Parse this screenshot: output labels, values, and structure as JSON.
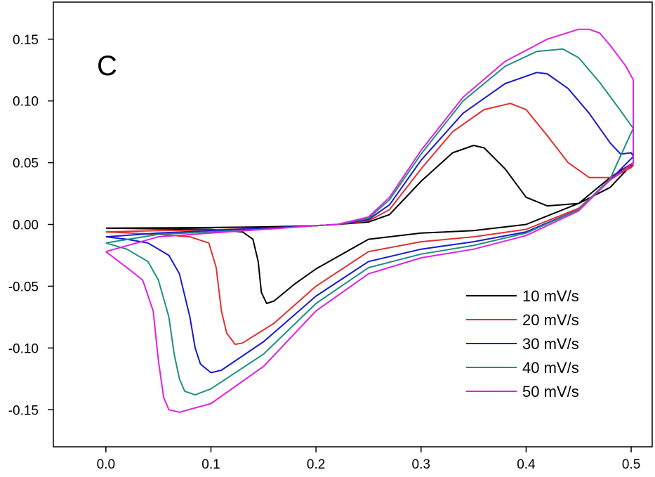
{
  "chart_data": {
    "type": "line",
    "panel_label": "C",
    "title": "",
    "xlabel": "",
    "ylabel": "",
    "xlim": [
      -0.05,
      0.52
    ],
    "ylim": [
      -0.18,
      0.18
    ],
    "x_ticks": [
      0.0,
      0.1,
      0.2,
      0.3,
      0.4,
      0.5
    ],
    "x_tick_labels": [
      "0.0",
      "0.1",
      "0.2",
      "0.3",
      "0.4",
      "0.5"
    ],
    "y_ticks": [
      -0.15,
      -0.1,
      -0.05,
      0.0,
      0.05,
      0.1,
      0.15
    ],
    "y_tick_labels": [
      "-0.15",
      "-0.10",
      "-0.05",
      "0.00",
      "0.05",
      "0.10",
      "0.15"
    ],
    "grid": false,
    "legend_position": "bottom-right",
    "series": [
      {
        "name": "10 mV/s",
        "color": "#000000",
        "points": [
          [
            0.0,
            -0.003
          ],
          [
            0.05,
            -0.0028
          ],
          [
            0.1,
            -0.0025
          ],
          [
            0.15,
            -0.002
          ],
          [
            0.2,
            -0.001
          ],
          [
            0.22,
            0.0
          ],
          [
            0.25,
            0.002
          ],
          [
            0.27,
            0.008
          ],
          [
            0.3,
            0.035
          ],
          [
            0.33,
            0.058
          ],
          [
            0.35,
            0.064
          ],
          [
            0.36,
            0.062
          ],
          [
            0.38,
            0.045
          ],
          [
            0.4,
            0.022
          ],
          [
            0.42,
            0.015
          ],
          [
            0.45,
            0.017
          ],
          [
            0.48,
            0.03
          ],
          [
            0.5,
            0.048
          ],
          [
            0.502,
            0.05
          ],
          [
            0.48,
            0.038
          ],
          [
            0.45,
            0.017
          ],
          [
            0.4,
            0.0
          ],
          [
            0.35,
            -0.005
          ],
          [
            0.3,
            -0.007
          ],
          [
            0.25,
            -0.012
          ],
          [
            0.2,
            -0.036
          ],
          [
            0.18,
            -0.048
          ],
          [
            0.16,
            -0.062
          ],
          [
            0.153,
            -0.064
          ],
          [
            0.148,
            -0.055
          ],
          [
            0.145,
            -0.03
          ],
          [
            0.14,
            -0.012
          ],
          [
            0.13,
            -0.006
          ],
          [
            0.1,
            -0.004
          ],
          [
            0.05,
            -0.0035
          ],
          [
            0.0,
            -0.003
          ]
        ]
      },
      {
        "name": "20 mV/s",
        "color": "#e03030",
        "points": [
          [
            0.0,
            -0.006
          ],
          [
            0.05,
            -0.005
          ],
          [
            0.1,
            -0.0045
          ],
          [
            0.15,
            -0.003
          ],
          [
            0.2,
            -0.001
          ],
          [
            0.22,
            0.0
          ],
          [
            0.25,
            0.003
          ],
          [
            0.27,
            0.012
          ],
          [
            0.3,
            0.045
          ],
          [
            0.33,
            0.075
          ],
          [
            0.36,
            0.093
          ],
          [
            0.385,
            0.098
          ],
          [
            0.4,
            0.093
          ],
          [
            0.42,
            0.072
          ],
          [
            0.44,
            0.05
          ],
          [
            0.46,
            0.038
          ],
          [
            0.48,
            0.038
          ],
          [
            0.5,
            0.046
          ],
          [
            0.502,
            0.048
          ],
          [
            0.48,
            0.036
          ],
          [
            0.45,
            0.013
          ],
          [
            0.4,
            -0.004
          ],
          [
            0.35,
            -0.01
          ],
          [
            0.3,
            -0.014
          ],
          [
            0.25,
            -0.022
          ],
          [
            0.2,
            -0.05
          ],
          [
            0.16,
            -0.08
          ],
          [
            0.13,
            -0.096
          ],
          [
            0.123,
            -0.097
          ],
          [
            0.115,
            -0.088
          ],
          [
            0.11,
            -0.07
          ],
          [
            0.105,
            -0.035
          ],
          [
            0.098,
            -0.015
          ],
          [
            0.08,
            -0.01
          ],
          [
            0.05,
            -0.008
          ],
          [
            0.0,
            -0.006
          ]
        ]
      },
      {
        "name": "30 mV/s",
        "color": "#1a1acc",
        "points": [
          [
            0.0,
            -0.01
          ],
          [
            0.05,
            -0.007
          ],
          [
            0.1,
            -0.005
          ],
          [
            0.15,
            -0.003
          ],
          [
            0.2,
            -0.001
          ],
          [
            0.22,
            0.0
          ],
          [
            0.25,
            0.004
          ],
          [
            0.27,
            0.016
          ],
          [
            0.3,
            0.052
          ],
          [
            0.34,
            0.09
          ],
          [
            0.38,
            0.114
          ],
          [
            0.41,
            0.123
          ],
          [
            0.42,
            0.122
          ],
          [
            0.44,
            0.11
          ],
          [
            0.46,
            0.09
          ],
          [
            0.48,
            0.066
          ],
          [
            0.49,
            0.057
          ],
          [
            0.5,
            0.058
          ],
          [
            0.502,
            0.055
          ],
          [
            0.48,
            0.036
          ],
          [
            0.45,
            0.012
          ],
          [
            0.4,
            -0.006
          ],
          [
            0.35,
            -0.014
          ],
          [
            0.3,
            -0.02
          ],
          [
            0.25,
            -0.03
          ],
          [
            0.2,
            -0.058
          ],
          [
            0.15,
            -0.095
          ],
          [
            0.11,
            -0.118
          ],
          [
            0.1,
            -0.12
          ],
          [
            0.09,
            -0.113
          ],
          [
            0.085,
            -0.1
          ],
          [
            0.08,
            -0.075
          ],
          [
            0.07,
            -0.04
          ],
          [
            0.06,
            -0.025
          ],
          [
            0.04,
            -0.015
          ],
          [
            0.02,
            -0.012
          ],
          [
            0.0,
            -0.01
          ]
        ]
      },
      {
        "name": "40 mV/s",
        "color": "#1f8f7f",
        "points": [
          [
            0.0,
            -0.015
          ],
          [
            0.05,
            -0.008
          ],
          [
            0.1,
            -0.006
          ],
          [
            0.15,
            -0.004
          ],
          [
            0.2,
            -0.001
          ],
          [
            0.22,
            0.0
          ],
          [
            0.25,
            0.005
          ],
          [
            0.27,
            0.02
          ],
          [
            0.3,
            0.057
          ],
          [
            0.34,
            0.1
          ],
          [
            0.38,
            0.128
          ],
          [
            0.41,
            0.14
          ],
          [
            0.435,
            0.142
          ],
          [
            0.45,
            0.135
          ],
          [
            0.47,
            0.115
          ],
          [
            0.49,
            0.092
          ],
          [
            0.5,
            0.08
          ],
          [
            0.502,
            0.078
          ],
          [
            0.48,
            0.037
          ],
          [
            0.45,
            0.012
          ],
          [
            0.4,
            -0.007
          ],
          [
            0.35,
            -0.017
          ],
          [
            0.3,
            -0.024
          ],
          [
            0.25,
            -0.035
          ],
          [
            0.2,
            -0.064
          ],
          [
            0.15,
            -0.105
          ],
          [
            0.1,
            -0.133
          ],
          [
            0.085,
            -0.138
          ],
          [
            0.075,
            -0.135
          ],
          [
            0.07,
            -0.125
          ],
          [
            0.065,
            -0.105
          ],
          [
            0.06,
            -0.075
          ],
          [
            0.05,
            -0.045
          ],
          [
            0.04,
            -0.03
          ],
          [
            0.02,
            -0.02
          ],
          [
            0.0,
            -0.015
          ]
        ]
      },
      {
        "name": "50 mV/s",
        "color": "#e021e0",
        "points": [
          [
            0.0,
            -0.022
          ],
          [
            0.05,
            -0.01
          ],
          [
            0.1,
            -0.007
          ],
          [
            0.15,
            -0.004
          ],
          [
            0.2,
            -0.001
          ],
          [
            0.22,
            0.0
          ],
          [
            0.25,
            0.006
          ],
          [
            0.27,
            0.022
          ],
          [
            0.3,
            0.06
          ],
          [
            0.34,
            0.103
          ],
          [
            0.38,
            0.132
          ],
          [
            0.42,
            0.15
          ],
          [
            0.45,
            0.158
          ],
          [
            0.46,
            0.158
          ],
          [
            0.47,
            0.155
          ],
          [
            0.48,
            0.145
          ],
          [
            0.495,
            0.128
          ],
          [
            0.502,
            0.117
          ],
          [
            0.502,
            0.05
          ],
          [
            0.48,
            0.036
          ],
          [
            0.45,
            0.011
          ],
          [
            0.4,
            -0.009
          ],
          [
            0.35,
            -0.02
          ],
          [
            0.3,
            -0.027
          ],
          [
            0.25,
            -0.04
          ],
          [
            0.2,
            -0.07
          ],
          [
            0.15,
            -0.115
          ],
          [
            0.1,
            -0.145
          ],
          [
            0.07,
            -0.152
          ],
          [
            0.06,
            -0.15
          ],
          [
            0.055,
            -0.14
          ],
          [
            0.05,
            -0.11
          ],
          [
            0.045,
            -0.07
          ],
          [
            0.035,
            -0.045
          ],
          [
            0.02,
            -0.035
          ],
          [
            0.0,
            -0.022
          ]
        ]
      }
    ]
  }
}
